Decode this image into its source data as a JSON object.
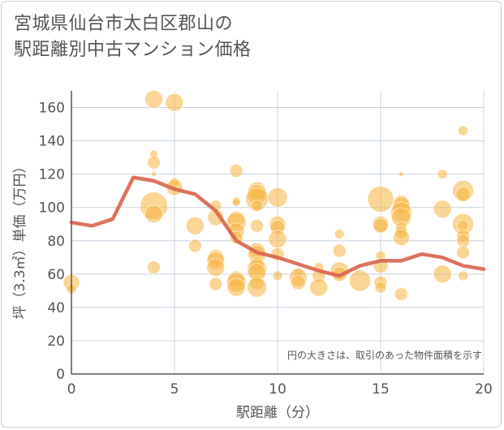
{
  "title_line1": "宮城県仙台市太白区郡山の",
  "title_line2": "駅距離別中古マンション価格",
  "chart_data": {
    "type": "scatter",
    "title": "宮城県仙台市太白区郡山の駅距離別中古マンション価格",
    "xlabel": "駅距離（分）",
    "ylabel": "坪（3.3㎡）単価（万円）",
    "xlim": [
      0,
      20
    ],
    "ylim": [
      0,
      170
    ],
    "xticks": [
      0,
      5,
      10,
      15,
      20
    ],
    "yticks": [
      0,
      20,
      40,
      60,
      80,
      100,
      120,
      140,
      160
    ],
    "grid": true,
    "note": "円の大きさは、取引のあった物件面積を示す",
    "colors": {
      "bubble": "#f5b53f",
      "line": "#d9634c",
      "grid": "#c8d4e0",
      "axis": "#555555"
    },
    "trend_line": {
      "x": [
        0,
        1,
        2,
        3,
        4,
        5,
        6,
        7,
        8,
        9,
        10,
        11,
        12,
        13,
        14,
        15,
        16,
        17,
        18,
        19,
        20
      ],
      "y": [
        91,
        89,
        93,
        118,
        116,
        111,
        108,
        98,
        80,
        73,
        70,
        66,
        62,
        59,
        65,
        68,
        68,
        72,
        70,
        65,
        63
      ]
    },
    "points": [
      {
        "x": 0,
        "y": 55,
        "s": 10
      },
      {
        "x": 0,
        "y": 51,
        "s": 6
      },
      {
        "x": 4,
        "y": 165,
        "s": 11
      },
      {
        "x": 5,
        "y": 163,
        "s": 11
      },
      {
        "x": 4,
        "y": 132,
        "s": 5
      },
      {
        "x": 4,
        "y": 127,
        "s": 8
      },
      {
        "x": 4,
        "y": 120,
        "s": 3
      },
      {
        "x": 5,
        "y": 115,
        "s": 6
      },
      {
        "x": 5,
        "y": 112,
        "s": 10
      },
      {
        "x": 4,
        "y": 101,
        "s": 17
      },
      {
        "x": 4,
        "y": 96,
        "s": 11
      },
      {
        "x": 4,
        "y": 64,
        "s": 8
      },
      {
        "x": 6,
        "y": 89,
        "s": 11
      },
      {
        "x": 6,
        "y": 77,
        "s": 8
      },
      {
        "x": 7,
        "y": 101,
        "s": 7
      },
      {
        "x": 7,
        "y": 94,
        "s": 10
      },
      {
        "x": 7,
        "y": 70,
        "s": 10
      },
      {
        "x": 7,
        "y": 68,
        "s": 11
      },
      {
        "x": 7,
        "y": 64,
        "s": 11
      },
      {
        "x": 7,
        "y": 54,
        "s": 8
      },
      {
        "x": 8,
        "y": 122,
        "s": 8
      },
      {
        "x": 8,
        "y": 104,
        "s": 5
      },
      {
        "x": 8,
        "y": 103,
        "s": 5
      },
      {
        "x": 8,
        "y": 93,
        "s": 10
      },
      {
        "x": 8,
        "y": 91,
        "s": 12
      },
      {
        "x": 8,
        "y": 86,
        "s": 10
      },
      {
        "x": 8,
        "y": 82,
        "s": 8
      },
      {
        "x": 8,
        "y": 57,
        "s": 10
      },
      {
        "x": 8,
        "y": 55,
        "s": 12
      },
      {
        "x": 8,
        "y": 52,
        "s": 11
      },
      {
        "x": 9,
        "y": 110,
        "s": 11
      },
      {
        "x": 9,
        "y": 108,
        "s": 12
      },
      {
        "x": 9,
        "y": 105,
        "s": 14
      },
      {
        "x": 9,
        "y": 101,
        "s": 7
      },
      {
        "x": 9,
        "y": 89,
        "s": 8
      },
      {
        "x": 9,
        "y": 74,
        "s": 10
      },
      {
        "x": 9,
        "y": 72,
        "s": 11
      },
      {
        "x": 9,
        "y": 66,
        "s": 9
      },
      {
        "x": 9,
        "y": 63,
        "s": 12
      },
      {
        "x": 9,
        "y": 61,
        "s": 11
      },
      {
        "x": 9,
        "y": 55,
        "s": 9
      },
      {
        "x": 9,
        "y": 52,
        "s": 12
      },
      {
        "x": 10,
        "y": 106,
        "s": 12
      },
      {
        "x": 10,
        "y": 90,
        "s": 10
      },
      {
        "x": 10,
        "y": 88,
        "s": 9
      },
      {
        "x": 10,
        "y": 81,
        "s": 11
      },
      {
        "x": 10,
        "y": 72,
        "s": 8
      },
      {
        "x": 10,
        "y": 59,
        "s": 6
      },
      {
        "x": 11,
        "y": 61,
        "s": 6
      },
      {
        "x": 11,
        "y": 58,
        "s": 11
      },
      {
        "x": 11,
        "y": 55,
        "s": 9
      },
      {
        "x": 12,
        "y": 64,
        "s": 6
      },
      {
        "x": 12,
        "y": 59,
        "s": 8
      },
      {
        "x": 12,
        "y": 52,
        "s": 11
      },
      {
        "x": 13,
        "y": 84,
        "s": 6
      },
      {
        "x": 13,
        "y": 74,
        "s": 8
      },
      {
        "x": 13,
        "y": 62,
        "s": 11
      },
      {
        "x": 13,
        "y": 60,
        "s": 9
      },
      {
        "x": 14,
        "y": 56,
        "s": 13
      },
      {
        "x": 15,
        "y": 105,
        "s": 16
      },
      {
        "x": 15,
        "y": 90,
        "s": 10
      },
      {
        "x": 15,
        "y": 89,
        "s": 9
      },
      {
        "x": 15,
        "y": 71,
        "s": 6
      },
      {
        "x": 15,
        "y": 65,
        "s": 9
      },
      {
        "x": 15,
        "y": 55,
        "s": 8
      },
      {
        "x": 15,
        "y": 52,
        "s": 7
      },
      {
        "x": 16,
        "y": 120,
        "s": 3
      },
      {
        "x": 16,
        "y": 103,
        "s": 9
      },
      {
        "x": 16,
        "y": 101,
        "s": 11
      },
      {
        "x": 16,
        "y": 97,
        "s": 13
      },
      {
        "x": 16,
        "y": 94,
        "s": 12
      },
      {
        "x": 16,
        "y": 88,
        "s": 7
      },
      {
        "x": 16,
        "y": 85,
        "s": 8
      },
      {
        "x": 16,
        "y": 82,
        "s": 10
      },
      {
        "x": 16,
        "y": 48,
        "s": 8
      },
      {
        "x": 18,
        "y": 120,
        "s": 6
      },
      {
        "x": 18,
        "y": 99,
        "s": 11
      },
      {
        "x": 18,
        "y": 60,
        "s": 11
      },
      {
        "x": 19,
        "y": 146,
        "s": 6
      },
      {
        "x": 19,
        "y": 110,
        "s": 13
      },
      {
        "x": 19,
        "y": 108,
        "s": 9
      },
      {
        "x": 19,
        "y": 90,
        "s": 13
      },
      {
        "x": 19,
        "y": 89,
        "s": 7
      },
      {
        "x": 19,
        "y": 83,
        "s": 8
      },
      {
        "x": 19,
        "y": 80,
        "s": 8
      },
      {
        "x": 19,
        "y": 73,
        "s": 8
      },
      {
        "x": 19,
        "y": 59,
        "s": 6
      }
    ]
  }
}
